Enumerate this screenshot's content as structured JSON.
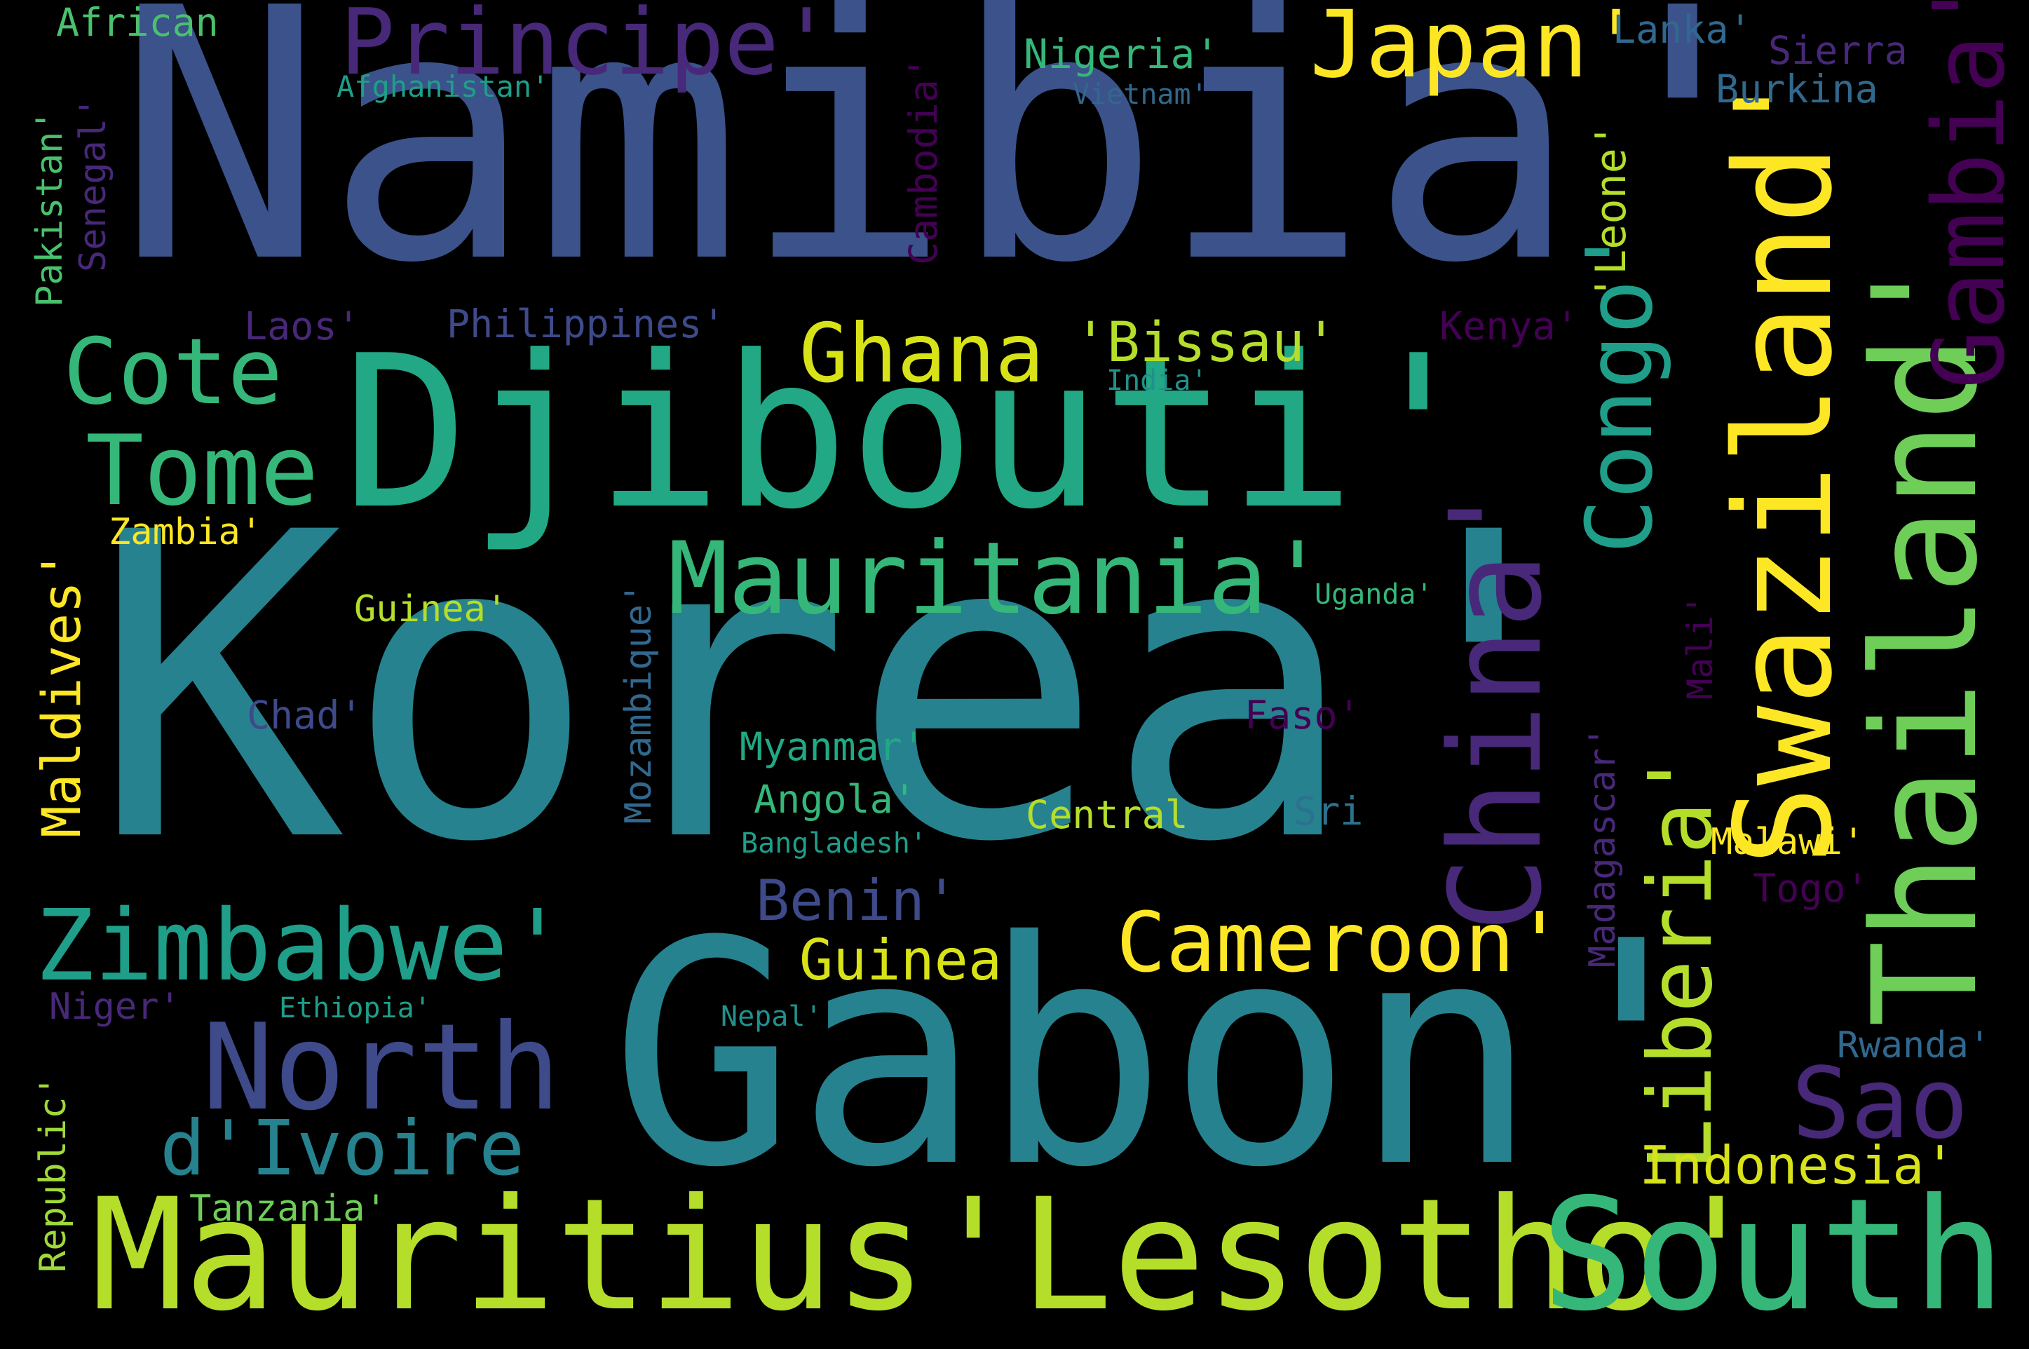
{
  "words": {
    "namibia": {
      "text": "Namibia'",
      "color": "#3b528b"
    },
    "korea": {
      "text": "Korea'",
      "color": "#26828e"
    },
    "gabon": {
      "text": "Gabon'",
      "color": "#26828e"
    },
    "djibouti": {
      "text": "Djibouti'",
      "color": "#22a884"
    },
    "mauritius_lesotho": {
      "text": "Mauritius'Lesotho'",
      "color": "#b5de2b"
    },
    "south": {
      "text": "South",
      "color": "#35b779"
    },
    "principe": {
      "text": "Principe'",
      "color": "#482878"
    },
    "japan": {
      "text": "Japan'",
      "color": "#fde725"
    },
    "swaziland": {
      "text": "Swaziland'",
      "color": "#fde725"
    },
    "thailand": {
      "text": "Thailand'",
      "color": "#6ece58"
    },
    "gambia": {
      "text": "Gambia'",
      "color": "#440154"
    },
    "china": {
      "text": "China'",
      "color": "#482878"
    },
    "congo": {
      "text": "Congo'",
      "color": "#1f9e89"
    },
    "leone": {
      "text": "'Leone'",
      "color": "#b5de2b"
    },
    "liberia": {
      "text": "Liberia'",
      "color": "#b5de2b"
    },
    "cote": {
      "text": "Cote",
      "color": "#35b779"
    },
    "tome": {
      "text": "Tome",
      "color": "#35b779"
    },
    "ghana": {
      "text": "Ghana",
      "color": "#d8e219"
    },
    "bissau": {
      "text": "'Bissau'",
      "color": "#b5de2b"
    },
    "mauritania": {
      "text": "Mauritania'",
      "color": "#35b779"
    },
    "zimbabwe": {
      "text": "Zimbabwe'",
      "color": "#1f9e89"
    },
    "north": {
      "text": "North",
      "color": "#3e4a89"
    },
    "divoire": {
      "text": "d'Ivoire",
      "color": "#26828e"
    },
    "cameroon": {
      "text": "Cameroon'",
      "color": "#fde725"
    },
    "sao": {
      "text": "Sao",
      "color": "#482878"
    },
    "indonesia": {
      "text": "Indonesia'",
      "color": "#d8e219"
    },
    "benin": {
      "text": "Benin'",
      "color": "#3e4a89"
    },
    "guinea_big": {
      "text": "Guinea",
      "color": "#d8e219"
    },
    "maldives": {
      "text": "Maldives'",
      "color": "#fde725"
    },
    "republic": {
      "text": "Republic'",
      "color": "#a0da39"
    },
    "african": {
      "text": "African",
      "color": "#4ac16d"
    },
    "afghanistan": {
      "text": "Afghanistan'",
      "color": "#1f9e89"
    },
    "nigeria": {
      "text": "Nigeria'",
      "color": "#35b779"
    },
    "vietnam": {
      "text": "Vietnam'",
      "color": "#31688e"
    },
    "lanka": {
      "text": "Lanka'",
      "color": "#31688e"
    },
    "sierra": {
      "text": "Sierra",
      "color": "#482878"
    },
    "burkina": {
      "text": "Burkina",
      "color": "#31688e"
    },
    "pakistan": {
      "text": "Pakistan'",
      "color": "#4ac16d"
    },
    "senegal": {
      "text": "Senegal'",
      "color": "#482878"
    },
    "cambodia": {
      "text": "Cambodia'",
      "color": "#440154"
    },
    "laos": {
      "text": "Laos'",
      "color": "#482878"
    },
    "philippines": {
      "text": "Philippines'",
      "color": "#3e4a89"
    },
    "kenya": {
      "text": "Kenya'",
      "color": "#440154"
    },
    "india": {
      "text": "India'",
      "color": "#21918c"
    },
    "zambia": {
      "text": "Zambia'",
      "color": "#fde725"
    },
    "guinea_small": {
      "text": "Guinea'",
      "color": "#b5de2b"
    },
    "uganda": {
      "text": "Uganda'",
      "color": "#35b779"
    },
    "mozambique": {
      "text": "Mozambique'",
      "color": "#31688e"
    },
    "mali": {
      "text": "Mali'",
      "color": "#440154"
    },
    "chad": {
      "text": "Chad'",
      "color": "#3e4a89"
    },
    "faso": {
      "text": "Faso'",
      "color": "#440154"
    },
    "myanmar": {
      "text": "Myanmar'",
      "color": "#22a884"
    },
    "angola": {
      "text": "Angola'",
      "color": "#35b779"
    },
    "central": {
      "text": "Central",
      "color": "#b5de2b"
    },
    "sri": {
      "text": "Sri",
      "color": "#2c728e"
    },
    "madagascar": {
      "text": "Madagascar'",
      "color": "#482878"
    },
    "bangladesh": {
      "text": "Bangladesh'",
      "color": "#1f9e89"
    },
    "malawi": {
      "text": "Malawi'",
      "color": "#fde725"
    },
    "togo": {
      "text": "Togo'",
      "color": "#440154"
    },
    "niger": {
      "text": "Niger'",
      "color": "#482878"
    },
    "ethiopia": {
      "text": "Ethiopia'",
      "color": "#1f9e89"
    },
    "nepal": {
      "text": "Nepal'",
      "color": "#21918c"
    },
    "rwanda": {
      "text": "Rwanda'",
      "color": "#31688e"
    },
    "tanzania": {
      "text": "Tanzania'",
      "color": "#6ece58"
    }
  }
}
